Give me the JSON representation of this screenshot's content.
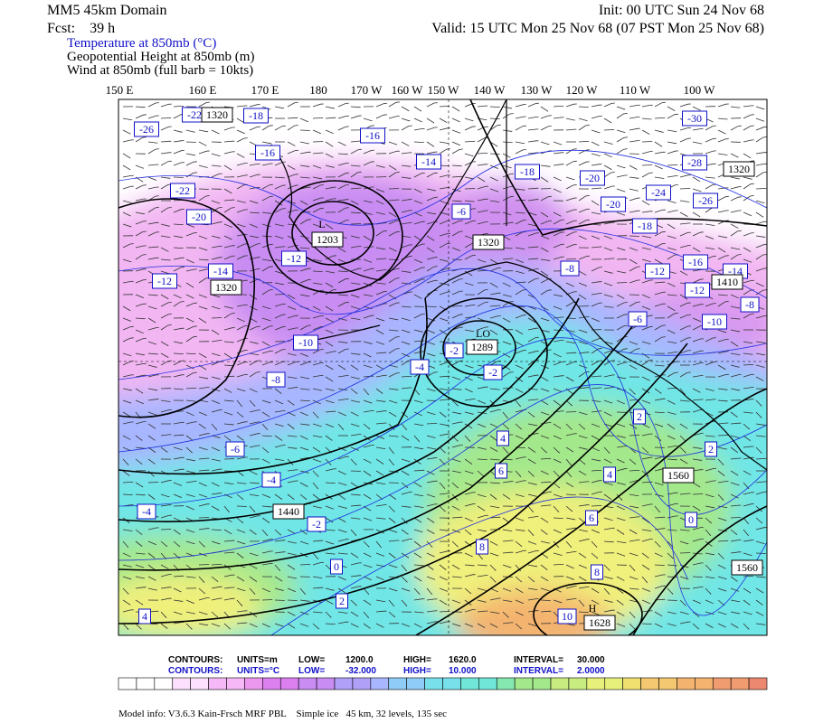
{
  "header": {
    "domain": "MM5 45km Domain",
    "forecast": "Fcst:    39 h",
    "init": "Init: 00 UTC Sun 24 Nov 68",
    "valid": "Valid: 15 UTC Mon 25 Nov 68 (07 PST Mon 25 Nov 68)",
    "fields": [
      "Temperature at 850mb (°C)",
      "Geopotential Height at 850mb (m)",
      "Wind at 850mb (full barb = 10kts)"
    ]
  },
  "longitudes": [
    "150 E",
    "160 E",
    "170 E",
    "180",
    "170 W",
    "160 W",
    "150 W",
    "140 W",
    "130 W",
    "120 W",
    "110 W",
    "100 W"
  ],
  "map": {
    "temperature_labels": [
      "-26",
      "-22",
      "-18",
      "-16",
      "-16",
      "-14",
      "-18",
      "-20",
      "-24",
      "-28",
      "-30",
      "-26",
      "-20",
      "-18",
      "-22",
      "-20",
      "-14",
      "-12",
      "-12",
      "-10",
      "-8",
      "-6",
      "-4",
      "-4",
      "-4",
      "-2",
      "-2",
      "-6",
      "-8",
      "-12",
      "-16",
      "-14",
      "-12",
      "-10",
      "-8",
      "-6",
      "2",
      "4",
      "6",
      "4",
      "2",
      "0",
      "6",
      "8",
      "8",
      "10",
      "0",
      "2",
      "4",
      "-2"
    ],
    "height_labels": [
      "1320",
      "1320",
      "1203",
      "1320",
      "1320",
      "1410",
      "1289",
      "1560",
      "1440",
      "1560",
      "1628"
    ],
    "center_labels": [
      "L",
      "LO",
      "H"
    ]
  },
  "legend": {
    "height_contours": [
      "CONTOURS:",
      "UNITS=m",
      "LOW=",
      "1200.0",
      "HIGH=",
      "1620.0",
      "INTERVAL=",
      "30.000"
    ],
    "temperature_contours": [
      "CONTOURS:",
      "UNITS=°C",
      "LOW=",
      "-32.000",
      "HIGH=",
      "10.000",
      "INTERVAL=",
      "2.0000"
    ]
  },
  "footer": "Model info: V3.6.3 Kain-Frsch MRF PBL    Simple ice   45 km, 32 levels, 135 sec"
}
